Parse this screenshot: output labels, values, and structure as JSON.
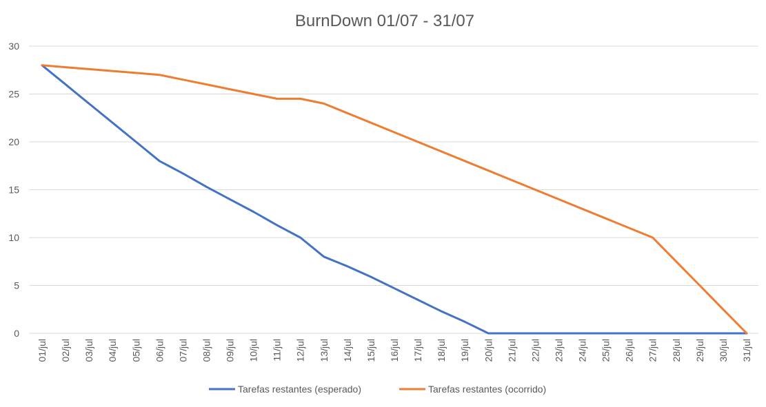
{
  "chart_data": {
    "type": "line",
    "title": "BurnDown 01/07 - 31/07",
    "xlabel": "",
    "ylabel": "",
    "ylim": [
      0,
      30
    ],
    "yticks": [
      0,
      5,
      10,
      15,
      20,
      25,
      30
    ],
    "grid": true,
    "legend_position": "bottom",
    "categories": [
      "01/jul",
      "02/jul",
      "03/jul",
      "04/jul",
      "05/jul",
      "06/jul",
      "07/jul",
      "08/jul",
      "09/jul",
      "10/jul",
      "11/jul",
      "12/jul",
      "13/jul",
      "14/jul",
      "15/jul",
      "16/jul",
      "17/jul",
      "18/jul",
      "19/jul",
      "20/jul",
      "21/jul",
      "22/jul",
      "23/jul",
      "24/jul",
      "25/jul",
      "26/jul",
      "27/jul",
      "28/jul",
      "29/jul",
      "30/jul",
      "31/jul"
    ],
    "series": [
      {
        "name": "Tarefas restantes (esperado)",
        "color": "#4472c4",
        "values": [
          28,
          26,
          24,
          22,
          20,
          18,
          16.7,
          15.3,
          14,
          12.7,
          11.3,
          10,
          8,
          7,
          5.9,
          4.7,
          3.5,
          2.3,
          1.2,
          0,
          0,
          0,
          0,
          0,
          0,
          0,
          0,
          0,
          0,
          0,
          0
        ]
      },
      {
        "name": "Tarefas restantes (ocorrido)",
        "color": "#ed7d31",
        "values": [
          28,
          27.8,
          27.6,
          27.4,
          27.2,
          27,
          26.5,
          26,
          25.5,
          25,
          24.5,
          24.5,
          24,
          23,
          22,
          21,
          20,
          19,
          18,
          17,
          16,
          15,
          14,
          13,
          12,
          11,
          10,
          7.5,
          5,
          2.5,
          0
        ]
      }
    ]
  }
}
